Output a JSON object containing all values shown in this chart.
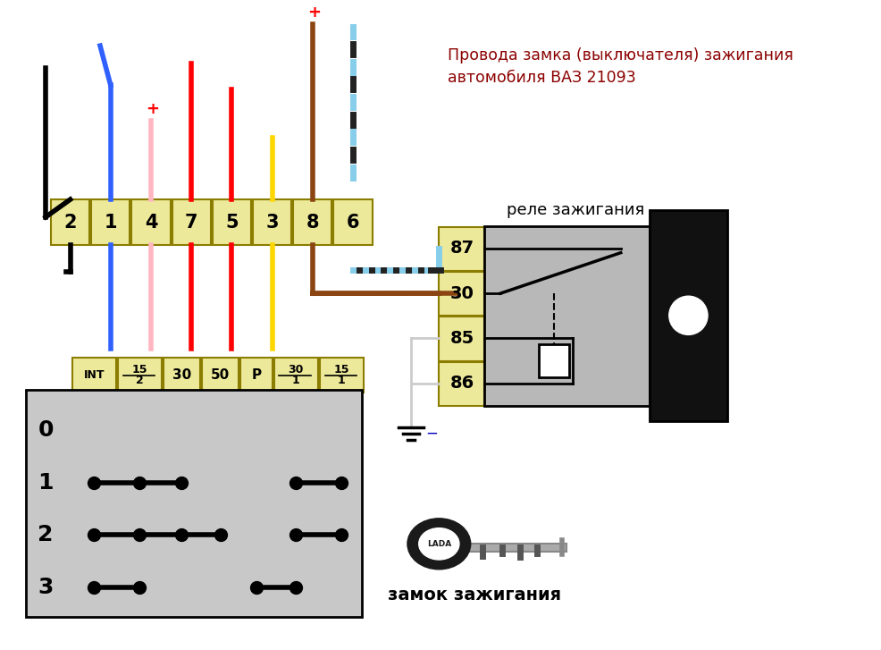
{
  "title_line1": "Провода замка (выключателя) зажигания",
  "title_line2": "автомобиля ВАЗ 21093",
  "title_color": "#8B0000",
  "bg_color": "#FFFFFF",
  "connector_bg": "#EDE99A",
  "connector_border": "#8B7D00",
  "relay_bg": "#B0B0B0",
  "switch_bg": "#C8C8C8",
  "top_connector_labels": [
    "2",
    "1",
    "4",
    "7",
    "5",
    "3",
    "8",
    "6"
  ],
  "bottom_connector_labels": [
    "INT",
    "15/2",
    "30",
    "50",
    "P",
    "30/1",
    "15/1"
  ],
  "relay_labels": [
    "87",
    "30",
    "85",
    "86"
  ],
  "switch_position_labels": [
    "0",
    "1",
    "2",
    "3"
  ],
  "relay_label": "реле зажигания",
  "lock_label": "замок зажигания"
}
